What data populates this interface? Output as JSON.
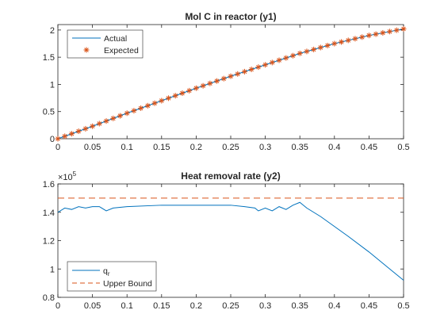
{
  "chart_data": [
    {
      "type": "line",
      "title": "Mol C in reactor (y1)",
      "xlabel": "",
      "ylabel": "",
      "xlim": [
        0,
        0.5
      ],
      "ylim": [
        0,
        2.1
      ],
      "xticks": [
        "0",
        "0.05",
        "0.1",
        "0.15",
        "0.2",
        "0.25",
        "0.3",
        "0.35",
        "0.4",
        "0.45",
        "0.5"
      ],
      "yticks": [
        "0",
        "0.5",
        "1",
        "1.5",
        "2"
      ],
      "grid": false,
      "legend_position": "top-left",
      "series": [
        {
          "name": "Actual",
          "style": "solid line",
          "color": "#0072BD",
          "x": [
            0,
            0.05,
            0.1,
            0.15,
            0.2,
            0.25,
            0.3,
            0.35,
            0.4,
            0.45,
            0.5
          ],
          "y": [
            0,
            0.23,
            0.47,
            0.7,
            0.93,
            1.15,
            1.36,
            1.57,
            1.75,
            1.9,
            2.02
          ]
        },
        {
          "name": "Expected",
          "style": "asterisk markers",
          "color": "#D95319",
          "x": [
            0,
            0.05,
            0.1,
            0.15,
            0.2,
            0.25,
            0.3,
            0.35,
            0.4,
            0.45,
            0.5
          ],
          "y": [
            0,
            0.23,
            0.47,
            0.7,
            0.93,
            1.15,
            1.36,
            1.57,
            1.75,
            1.9,
            2.02
          ]
        }
      ]
    },
    {
      "type": "line",
      "title": "Heat removal rate (y2)",
      "xlabel": "",
      "ylabel": "",
      "y_exponent": "×10",
      "y_exponent_power": "5",
      "xlim": [
        0,
        0.5
      ],
      "ylim": [
        0.8,
        1.6
      ],
      "xticks": [
        "0",
        "0.05",
        "0.1",
        "0.15",
        "0.2",
        "0.25",
        "0.3",
        "0.35",
        "0.4",
        "0.45",
        "0.5"
      ],
      "yticks": [
        "0.8",
        "1",
        "1.2",
        "1.4",
        "1.6"
      ],
      "grid": false,
      "legend_position": "bottom-left",
      "series": [
        {
          "name": "q",
          "name_subscript": "r",
          "style": "solid line",
          "color": "#0072BD",
          "x": [
            0,
            0.01,
            0.02,
            0.03,
            0.04,
            0.05,
            0.06,
            0.07,
            0.08,
            0.1,
            0.15,
            0.2,
            0.25,
            0.27,
            0.285,
            0.29,
            0.3,
            0.31,
            0.32,
            0.33,
            0.34,
            0.35,
            0.36,
            0.38,
            0.4,
            0.42,
            0.45,
            0.48,
            0.5
          ],
          "y": [
            1.4,
            1.43,
            1.42,
            1.44,
            1.43,
            1.44,
            1.44,
            1.41,
            1.43,
            1.44,
            1.45,
            1.45,
            1.45,
            1.44,
            1.43,
            1.41,
            1.43,
            1.41,
            1.44,
            1.42,
            1.45,
            1.47,
            1.43,
            1.37,
            1.3,
            1.23,
            1.12,
            1.0,
            0.92
          ]
        },
        {
          "name": "Upper Bound",
          "style": "dashed line",
          "color": "#D95319",
          "x": [
            0,
            0.5
          ],
          "y": [
            1.5,
            1.5
          ]
        }
      ]
    }
  ]
}
